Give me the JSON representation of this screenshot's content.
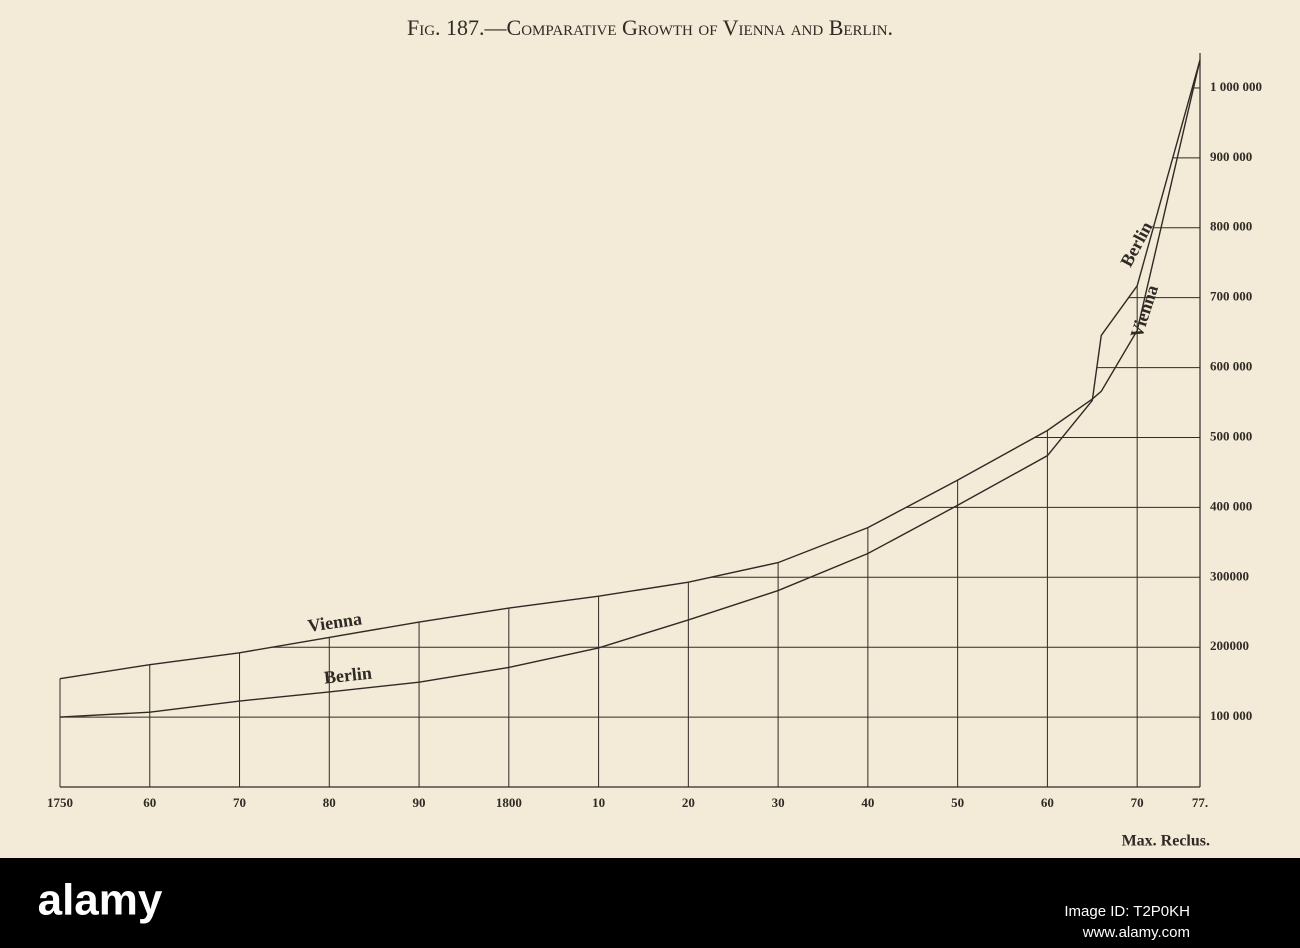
{
  "chart_data": {
    "type": "line",
    "title": "Fig. 187.—Comparative Growth of Vienna and Berlin.",
    "credit": "Max. Reclus.",
    "x": [
      1750,
      1760,
      1770,
      1780,
      1790,
      1800,
      1810,
      1820,
      1830,
      1840,
      1850,
      1860,
      1865,
      1866,
      1870,
      1877
    ],
    "series": [
      {
        "name": "Vienna",
        "color": "#2f2a24",
        "values": [
          155000,
          175000,
          192000,
          214000,
          236000,
          256000,
          273000,
          293000,
          321000,
          371000,
          439000,
          510000,
          555000,
          566000,
          653000,
          1040000
        ]
      },
      {
        "name": "Berlin",
        "color": "#2f2a24",
        "values": [
          100000,
          107000,
          123000,
          136000,
          150000,
          171000,
          199000,
          239000,
          281000,
          334000,
          403000,
          474000,
          553000,
          646000,
          717000,
          1040000
        ]
      }
    ],
    "xlim": [
      1750,
      1877
    ],
    "xticks": [
      1750,
      {
        "value": 1760,
        "label": "60"
      },
      {
        "value": 1770,
        "label": "70"
      },
      {
        "value": 1780,
        "label": "80"
      },
      {
        "value": 1790,
        "label": "90"
      },
      1800,
      {
        "value": 1810,
        "label": "10"
      },
      {
        "value": 1820,
        "label": "20"
      },
      {
        "value": 1830,
        "label": "30"
      },
      {
        "value": 1840,
        "label": "40"
      },
      {
        "value": 1850,
        "label": "50"
      },
      {
        "value": 1860,
        "label": "60"
      },
      {
        "value": 1870,
        "label": "70"
      },
      {
        "value": 1877,
        "label": "77."
      }
    ],
    "ylim": [
      0,
      1050000
    ],
    "yticks": [
      {
        "value": 100000,
        "label": "100 000"
      },
      {
        "value": 200000,
        "label": "200000"
      },
      {
        "value": 300000,
        "label": "300000"
      },
      {
        "value": 400000,
        "label": "400 000"
      },
      {
        "value": 500000,
        "label": "500 000"
      },
      {
        "value": 600000,
        "label": "600 000"
      },
      {
        "value": 700000,
        "label": "700 000"
      },
      {
        "value": 800000,
        "label": "800 000"
      },
      {
        "value": 900000,
        "label": "900 000"
      },
      {
        "value": 1000000,
        "label": "1 000 000"
      }
    ],
    "grid": true
  },
  "footer": {
    "logo": "alamy",
    "image_id": "Image ID: T2P0KH",
    "url": "www.alamy.com"
  }
}
